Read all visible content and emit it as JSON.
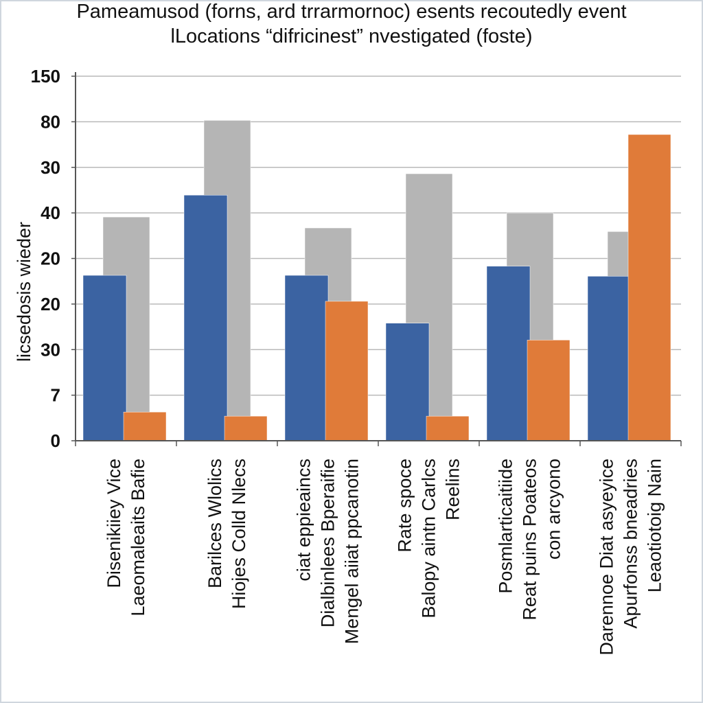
{
  "chart_data": {
    "type": "bar",
    "title": [
      "Pameamusod (forns, ard trrarmornoc) esents recoutedly event",
      "lLocations “difricinest” nvestigated (foste)"
    ],
    "y_label": "licsedosis wieder",
    "categories": [
      [
        "Disenikiiey Vice",
        "Laeomaleaits Bafie"
      ],
      [
        "Barilces Wlolics",
        "Hiojes Colld Nlecs"
      ],
      [
        "ciat eppieaincs",
        "Dialbinlees Bperaifie",
        "Mengel aiiat ppcanotin"
      ],
      [
        "Rate spoce",
        "Balopy aintn Carlcs",
        "Reelins"
      ],
      [
        "Posmlarticaitiide",
        "Reat puins Poateos",
        "con arcyono"
      ],
      [
        "Darennoe Diat asyeyice",
        "Apurfonss bneadries",
        "Leaotiotoig Nain"
      ]
    ],
    "series": [
      {
        "color": "#3b63a2",
        "values": [
          3.63,
          5.39,
          3.63,
          2.58,
          3.83,
          3.61
        ]
      },
      {
        "color": "#b5b5b5",
        "values": [
          4.91,
          7.03,
          4.67,
          5.86,
          5.0,
          4.59
        ]
      },
      {
        "color": "#e07b39",
        "values": [
          0.63,
          0.54,
          3.06,
          0.54,
          2.21,
          6.72
        ]
      }
    ],
    "ylim": [
      0,
      8
    ],
    "yticks": [
      0,
      {
        "value": 1,
        "label": "7"
      },
      {
        "value": 2,
        "label": "30"
      },
      {
        "value": 3,
        "label": "20"
      },
      {
        "value": 4,
        "label": "20"
      },
      {
        "value": 5,
        "label": "40"
      },
      {
        "value": 6,
        "label": "30"
      },
      {
        "value": 7,
        "label": "80"
      },
      {
        "value": 8,
        "label": "150"
      }
    ],
    "grid": true
  }
}
